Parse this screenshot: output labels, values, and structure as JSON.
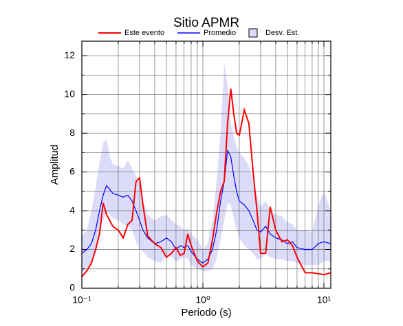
{
  "chart_data": {
    "type": "line",
    "title": "Sitio APMR",
    "x_label": "Periodo (s)",
    "y_label": "Amplitud",
    "x_scale": "log",
    "grid": true,
    "x": [
      0.1,
      0.11,
      0.12,
      0.13,
      0.14,
      0.15,
      0.16,
      0.17,
      0.18,
      0.2,
      0.22,
      0.24,
      0.26,
      0.28,
      0.3,
      0.32,
      0.35,
      0.4,
      0.45,
      0.5,
      0.55,
      0.6,
      0.65,
      0.7,
      0.75,
      0.8,
      0.9,
      1.0,
      1.1,
      1.2,
      1.3,
      1.4,
      1.5,
      1.6,
      1.7,
      1.8,
      1.9,
      2.0,
      2.2,
      2.4,
      2.6,
      2.8,
      3.0,
      3.3,
      3.6,
      4.0,
      4.5,
      5.0,
      5.5,
      6.0,
      7.0,
      8.0,
      9.0,
      10,
      11.4
    ],
    "series": [
      {
        "name": "Este evento",
        "color": "#ff0000",
        "values": [
          0.6,
          0.9,
          1.3,
          2.0,
          2.8,
          4.4,
          3.8,
          3.5,
          3.2,
          3.0,
          2.6,
          3.3,
          3.5,
          5.5,
          5.7,
          4.3,
          2.7,
          2.3,
          2.1,
          1.6,
          1.8,
          2.1,
          1.7,
          1.8,
          2.8,
          2.2,
          1.4,
          1.1,
          1.3,
          2.5,
          3.9,
          5.0,
          5.5,
          8.5,
          10.3,
          9.0,
          8.0,
          7.9,
          9.2,
          8.5,
          6.0,
          4.0,
          1.8,
          1.8,
          4.2,
          3.0,
          2.4,
          2.5,
          2.2,
          1.6,
          0.8,
          0.8,
          0.75,
          0.7,
          0.8
        ]
      },
      {
        "name": "Promedio",
        "color": "#0000ff",
        "values": [
          1.8,
          2.0,
          2.3,
          3.0,
          4.0,
          4.8,
          5.3,
          5.1,
          4.9,
          4.8,
          4.7,
          4.8,
          4.5,
          4.0,
          3.5,
          3.0,
          2.6,
          2.3,
          2.4,
          2.6,
          2.4,
          2.0,
          2.2,
          2.1,
          2.2,
          1.9,
          1.5,
          1.3,
          1.5,
          2.0,
          3.0,
          4.5,
          5.5,
          7.1,
          6.8,
          5.8,
          5.0,
          4.5,
          4.3,
          4.0,
          3.5,
          3.0,
          2.9,
          3.2,
          2.8,
          2.6,
          2.5,
          2.3,
          2.4,
          2.1,
          2.0,
          2.0,
          2.3,
          2.4,
          2.3
        ]
      }
    ],
    "band": {
      "name": "Desv. Est.",
      "color": "#dcdcfa",
      "upper": [
        2.7,
        3.0,
        4.0,
        5.2,
        6.5,
        7.5,
        7.7,
        6.8,
        6.4,
        6.3,
        6.2,
        6.6,
        6.2,
        5.8,
        5.5,
        4.5,
        3.8,
        3.5,
        3.7,
        3.8,
        3.5,
        3.3,
        3.2,
        3.0,
        3.1,
        2.8,
        2.5,
        2.0,
        2.3,
        3.5,
        5.5,
        8.0,
        11.6,
        10.5,
        8.5,
        7.8,
        7.3,
        7.0,
        6.7,
        6.3,
        5.5,
        4.8,
        4.2,
        4.5,
        4.0,
        3.8,
        3.7,
        3.4,
        3.3,
        3.0,
        3.0,
        2.9,
        4.3,
        5.0,
        4.0
      ],
      "lower": [
        0.8,
        1.0,
        1.3,
        2.0,
        2.8,
        3.5,
        3.9,
        3.8,
        3.6,
        3.5,
        3.3,
        3.2,
        3.0,
        2.4,
        2.0,
        1.9,
        1.6,
        1.4,
        1.3,
        1.7,
        1.6,
        1.4,
        1.5,
        1.6,
        1.5,
        1.2,
        1.0,
        0.9,
        0.9,
        1.0,
        1.5,
        2.5,
        3.5,
        4.4,
        4.3,
        3.6,
        3.0,
        2.6,
        2.2,
        2.0,
        1.8,
        1.5,
        1.5,
        1.8,
        1.6,
        1.5,
        1.5,
        1.4,
        1.4,
        1.3,
        1.2,
        1.2,
        1.2,
        1.4,
        1.4
      ]
    },
    "xlim": [
      0.1,
      11.4
    ],
    "xticks": [
      {
        "value": 0.1,
        "label": "10⁻¹"
      },
      {
        "value": 1,
        "label": "10⁰"
      },
      {
        "value": 10,
        "label": "10¹"
      }
    ],
    "xminorticks": [
      0.2,
      0.3,
      0.4,
      0.5,
      0.6,
      0.7,
      0.8,
      0.9,
      2,
      3,
      4,
      5,
      6,
      7,
      8,
      9
    ],
    "ylim": [
      0,
      12.75
    ],
    "yticks": [
      0,
      2,
      4,
      6,
      8,
      10,
      12
    ],
    "yminorticks": [
      1,
      3,
      5,
      7,
      9,
      11
    ]
  }
}
